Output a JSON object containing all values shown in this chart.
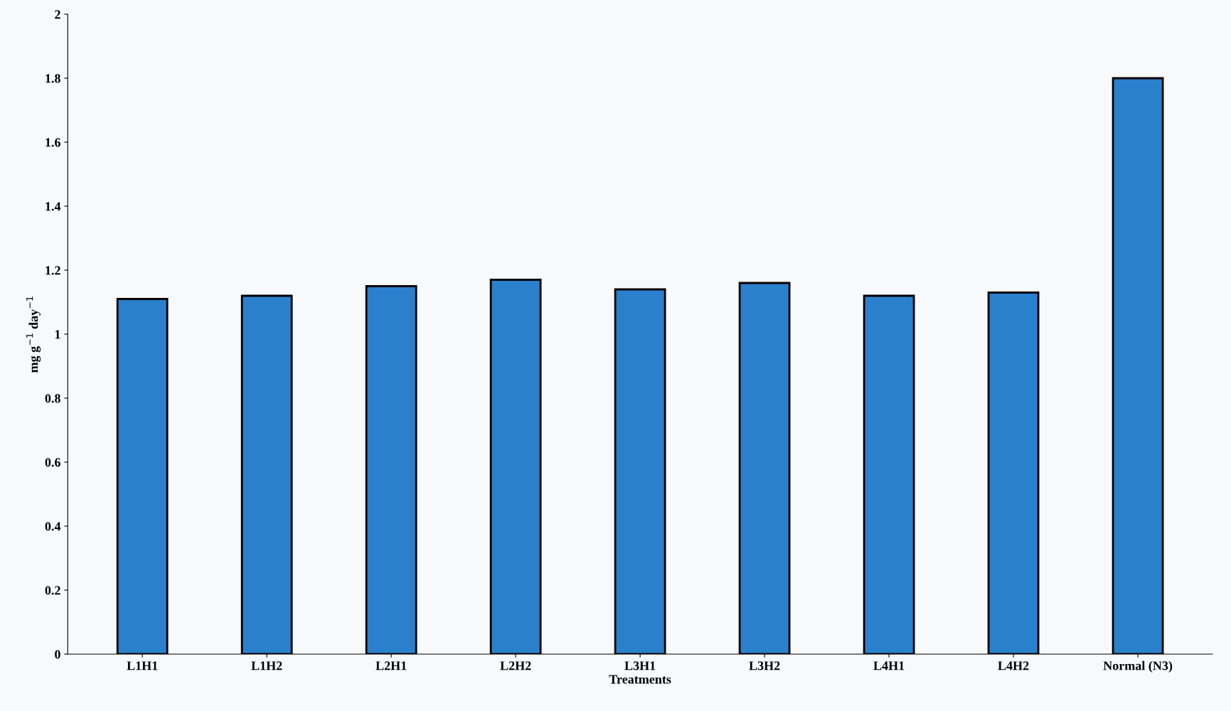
{
  "chart_data": {
    "type": "bar",
    "xlabel": "Treatments",
    "ylabel": "mg g$^{−1}$ day$^{−1}$",
    "categories": [
      "L1H1",
      "L1H2",
      "L2H1",
      "L2H2",
      "L3H1",
      "L3H2",
      "L4H1",
      "L4H2",
      "Normal (N3)"
    ],
    "values": [
      1.11,
      1.12,
      1.15,
      1.17,
      1.14,
      1.16,
      1.12,
      1.13,
      1.8
    ],
    "color": "#2b80cc",
    "ylim": [
      0,
      2
    ],
    "yticks": [
      0,
      0.2,
      0.4,
      0.6,
      0.8,
      1,
      1.2,
      1.4,
      1.6,
      1.8,
      2
    ],
    "grid": false
  }
}
